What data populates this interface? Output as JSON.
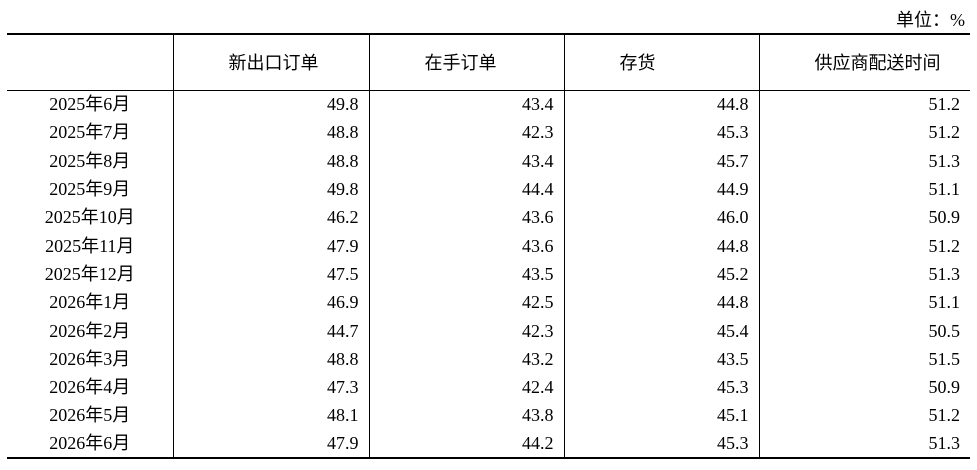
{
  "unit": "单位：%",
  "table": {
    "header": [
      "新出口订单",
      "在手订单",
      "存货",
      "供应商配送时间"
    ],
    "rows": [
      [
        "2025年6月",
        "49.8",
        "43.4",
        "44.8",
        "51.2"
      ],
      [
        "2025年7月",
        "48.8",
        "42.3",
        "45.3",
        "51.2"
      ],
      [
        "2025年8月",
        "48.8",
        "43.4",
        "45.7",
        "51.3"
      ],
      [
        "2025年9月",
        "49.8",
        "44.4",
        "44.9",
        "51.1"
      ],
      [
        "2025年10月",
        "46.2",
        "43.6",
        "46.0",
        "50.9"
      ],
      [
        "2025年11月",
        "47.9",
        "43.6",
        "44.8",
        "51.2"
      ],
      [
        "2025年12月",
        "47.5",
        "43.5",
        "45.2",
        "51.3"
      ],
      [
        "2026年1月",
        "46.9",
        "42.5",
        "44.8",
        "51.1"
      ],
      [
        "2026年2月",
        "44.7",
        "42.3",
        "45.4",
        "50.5"
      ],
      [
        "2026年3月",
        "48.8",
        "43.2",
        "43.5",
        "51.5"
      ],
      [
        "2026年4月",
        "47.3",
        "42.4",
        "45.3",
        "50.9"
      ],
      [
        "2026年5月",
        "48.1",
        "43.8",
        "45.1",
        "51.2"
      ],
      [
        "2026年6月",
        "47.9",
        "44.2",
        "45.3",
        "51.3"
      ]
    ]
  }
}
